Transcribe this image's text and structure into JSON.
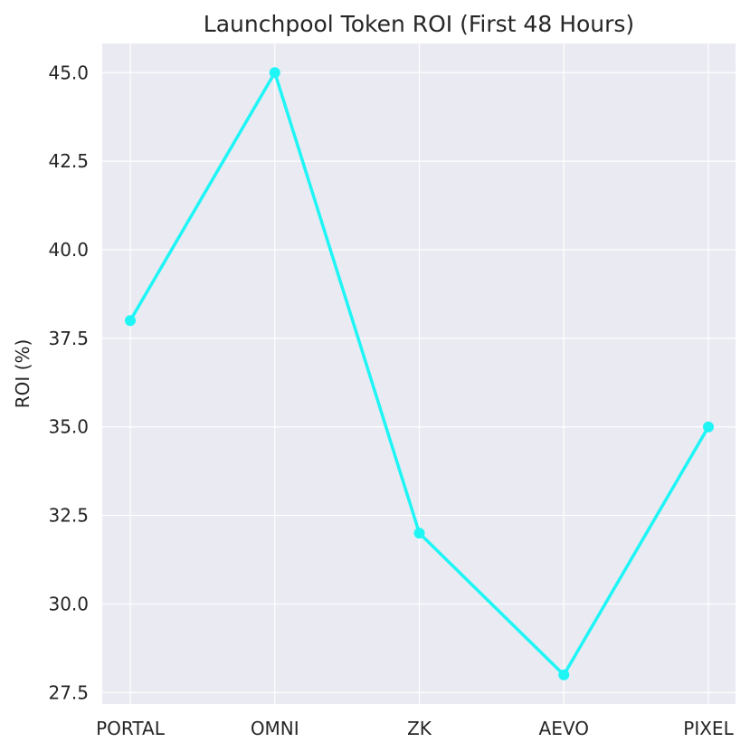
{
  "chart_data": {
    "type": "line",
    "title": "Launchpool Token ROI (First 48 Hours)",
    "xlabel": "",
    "ylabel": "ROI (%)",
    "categories": [
      "PORTAL",
      "OMNI",
      "ZK",
      "AEVO",
      "PIXEL"
    ],
    "series": [
      {
        "values": [
          38.0,
          45.0,
          32.0,
          28.0,
          35.0
        ]
      }
    ],
    "ylim": [
      27.175,
      45.825
    ],
    "yticks": [
      27.5,
      30.0,
      32.5,
      35.0,
      37.5,
      40.0,
      42.5,
      45.0
    ],
    "ytick_labels": [
      "27.5",
      "30.0",
      "32.5",
      "35.0",
      "37.5",
      "40.0",
      "42.5",
      "45.0"
    ],
    "grid": true,
    "colors": {
      "line": "#1ff5f5",
      "plot_background": "#eaeaf2",
      "grid": "#ffffff",
      "text": "#262626"
    }
  }
}
